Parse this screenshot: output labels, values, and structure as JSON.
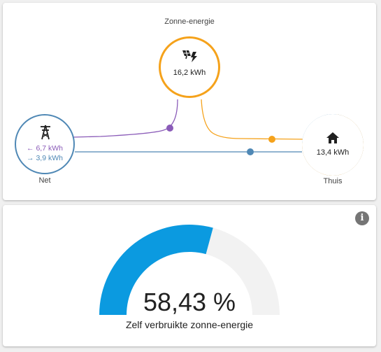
{
  "colors": {
    "solar": "#f5a21b",
    "grid": "#4f88b5",
    "grid_import": "#8a5bb8",
    "gauge_fill": "#0b9ae0",
    "gauge_track": "#f2f2f2"
  },
  "energy_flow": {
    "solar": {
      "label": "Zonne-energie",
      "value": "16,2 kWh",
      "icon": "solar-panel-icon"
    },
    "grid": {
      "label": "Net",
      "import_value": "← 6,7 kWh",
      "export_value": "→ 3,9 kWh",
      "icon": "transmission-tower-icon"
    },
    "home": {
      "label": "Thuis",
      "value": "13,4 kWh",
      "icon": "home-icon"
    }
  },
  "self_consumption": {
    "value_text": "58,43 %",
    "value_percent": 58.43,
    "caption": "Zelf verbruikte zonne-energie",
    "info_icon": "info-icon"
  }
}
